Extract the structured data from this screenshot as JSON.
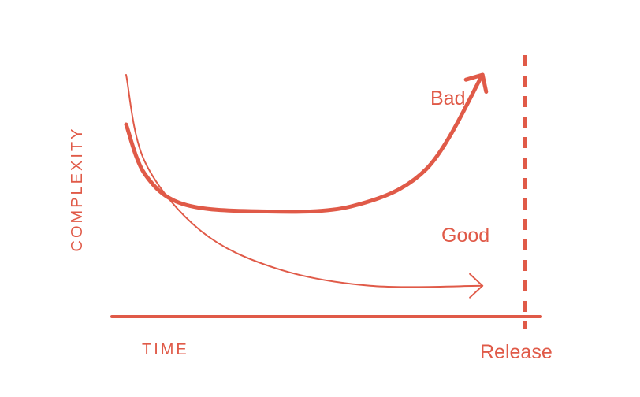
{
  "chart_data": {
    "type": "line",
    "title": "",
    "xlabel": "TIME",
    "ylabel": "COMPLEXITY",
    "color": "#e05a48",
    "marker_label": "Release",
    "series": [
      {
        "name": "Bad",
        "style": "thick",
        "points": [
          [
            0.0,
            0.8
          ],
          [
            0.05,
            0.6
          ],
          [
            0.15,
            0.48
          ],
          [
            0.35,
            0.45
          ],
          [
            0.6,
            0.47
          ],
          [
            0.8,
            0.62
          ],
          [
            0.95,
            1.0
          ]
        ]
      },
      {
        "name": "Good",
        "style": "thin",
        "points": [
          [
            0.0,
            1.0
          ],
          [
            0.05,
            0.65
          ],
          [
            0.2,
            0.37
          ],
          [
            0.4,
            0.22
          ],
          [
            0.65,
            0.15
          ],
          [
            0.95,
            0.15
          ]
        ]
      }
    ],
    "grid": false
  }
}
